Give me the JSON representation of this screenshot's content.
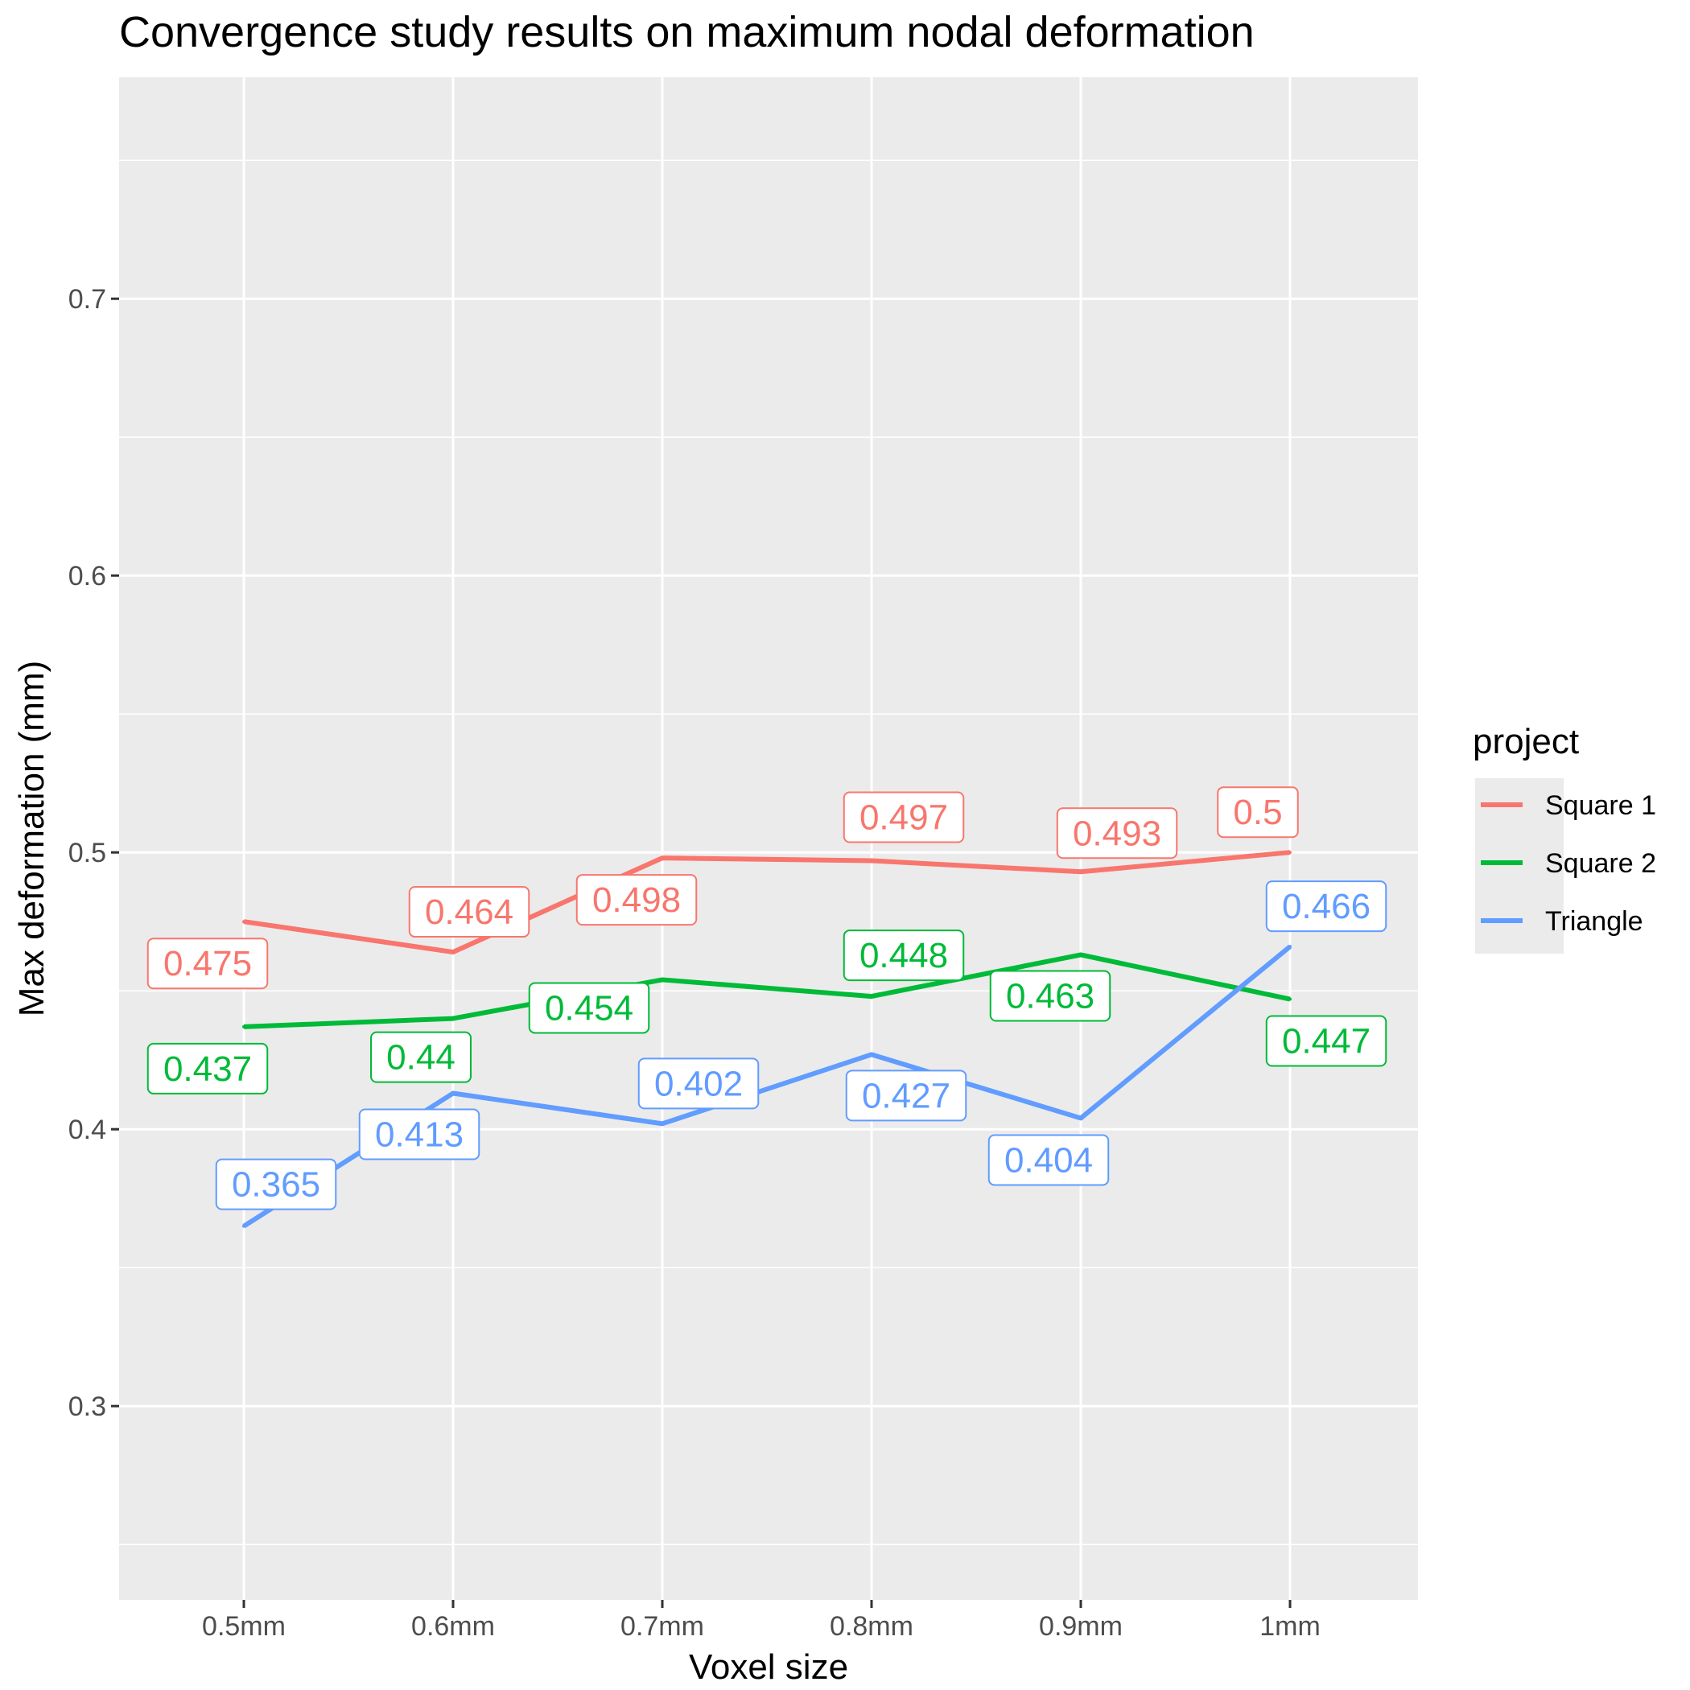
{
  "chart_data": {
    "type": "line",
    "title": "Convergence study results on maximum nodal deformation",
    "xlabel": "Voxel size",
    "ylabel": "Max deformation (mm)",
    "categories": [
      "0.5mm",
      "0.6mm",
      "0.7mm",
      "0.8mm",
      "0.9mm",
      "1mm"
    ],
    "ylim": [
      0.23,
      0.78
    ],
    "yticks": [
      0.3,
      0.4,
      0.5,
      0.6,
      0.7
    ],
    "ytick_labels": [
      "0.3",
      "0.4",
      "0.5",
      "0.6",
      "0.7"
    ],
    "grid": true,
    "legend": {
      "title": "project",
      "position": "right"
    },
    "series": [
      {
        "name": "Square 1",
        "color": "#F8766D",
        "values": [
          0.475,
          0.464,
          0.498,
          0.497,
          0.493,
          0.5
        ],
        "labels": [
          "0.475",
          "0.464",
          "0.498",
          "0.497",
          "0.493",
          "0.5"
        ]
      },
      {
        "name": "Square 2",
        "color": "#00BA38",
        "values": [
          0.437,
          0.44,
          0.454,
          0.448,
          0.463,
          0.447
        ],
        "labels": [
          "0.437",
          "0.44",
          "0.454",
          "0.448",
          "0.463",
          "0.447"
        ]
      },
      {
        "name": "Triangle",
        "color": "#619CFF",
        "values": [
          0.365,
          0.413,
          0.402,
          0.427,
          0.404,
          0.466
        ],
        "labels": [
          "0.365",
          "0.413",
          "0.402",
          "0.427",
          "0.404",
          "0.466"
        ]
      }
    ]
  }
}
